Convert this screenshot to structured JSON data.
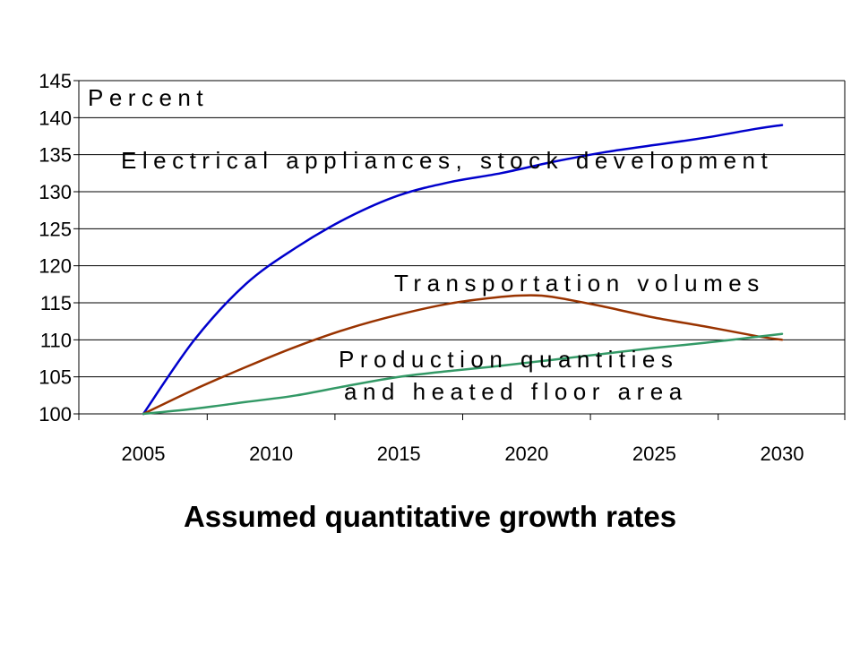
{
  "caption": "Assumed quantitative growth rates",
  "chart_data": {
    "type": "line",
    "x": [
      2005,
      2010,
      2015,
      2020,
      2025,
      2030
    ],
    "x_tick_labels": [
      "2005",
      "2010",
      "2015",
      "2020",
      "2025",
      "2030"
    ],
    "y_ticks": [
      100,
      105,
      110,
      115,
      120,
      125,
      130,
      135,
      140,
      145
    ],
    "y_tick_labels": [
      "100",
      "105",
      "110",
      "115",
      "120",
      "125",
      "130",
      "135",
      "140",
      "145"
    ],
    "ylim": [
      100,
      145
    ],
    "grid": "horizontal",
    "ylabel": "Percent",
    "series": [
      {
        "name": "Electrical appliances, stock development",
        "color": "#0000cc",
        "points": [
          [
            2005,
            100
          ],
          [
            2007,
            110
          ],
          [
            2009,
            117.5
          ],
          [
            2011,
            122.5
          ],
          [
            2013,
            126.5
          ],
          [
            2015,
            129.5
          ],
          [
            2017,
            131.3
          ],
          [
            2019,
            132.5
          ],
          [
            2021,
            134
          ],
          [
            2023,
            135.3
          ],
          [
            2025,
            136.3
          ],
          [
            2027,
            137.3
          ],
          [
            2029,
            138.5
          ],
          [
            2030,
            139
          ]
        ]
      },
      {
        "name": "Transportation volumes",
        "color": "#993300",
        "points": [
          [
            2005,
            100
          ],
          [
            2007,
            103.3
          ],
          [
            2009,
            106.3
          ],
          [
            2011,
            109.1
          ],
          [
            2013,
            111.5
          ],
          [
            2015,
            113.4
          ],
          [
            2017,
            114.9
          ],
          [
            2019,
            115.8
          ],
          [
            2020,
            116
          ],
          [
            2021,
            115.8
          ],
          [
            2023,
            114.5
          ],
          [
            2025,
            113
          ],
          [
            2027,
            111.8
          ],
          [
            2029,
            110.5
          ],
          [
            2030,
            110
          ]
        ]
      },
      {
        "name": "Production quantities and heated floor area",
        "color": "#339966",
        "points": [
          [
            2005,
            100
          ],
          [
            2007,
            100.7
          ],
          [
            2009,
            101.6
          ],
          [
            2011,
            102.5
          ],
          [
            2013,
            103.8
          ],
          [
            2015,
            105
          ],
          [
            2017,
            105.8
          ],
          [
            2019,
            106.5
          ],
          [
            2021,
            107.3
          ],
          [
            2023,
            108.1
          ],
          [
            2025,
            108.9
          ],
          [
            2027,
            109.6
          ],
          [
            2029,
            110.4
          ],
          [
            2030,
            110.8
          ]
        ]
      }
    ],
    "annotations": [
      "Percent",
      "Electrical appliances, stock development",
      "Transportation volumes",
      "Production quantities",
      "and heated floor area"
    ]
  }
}
